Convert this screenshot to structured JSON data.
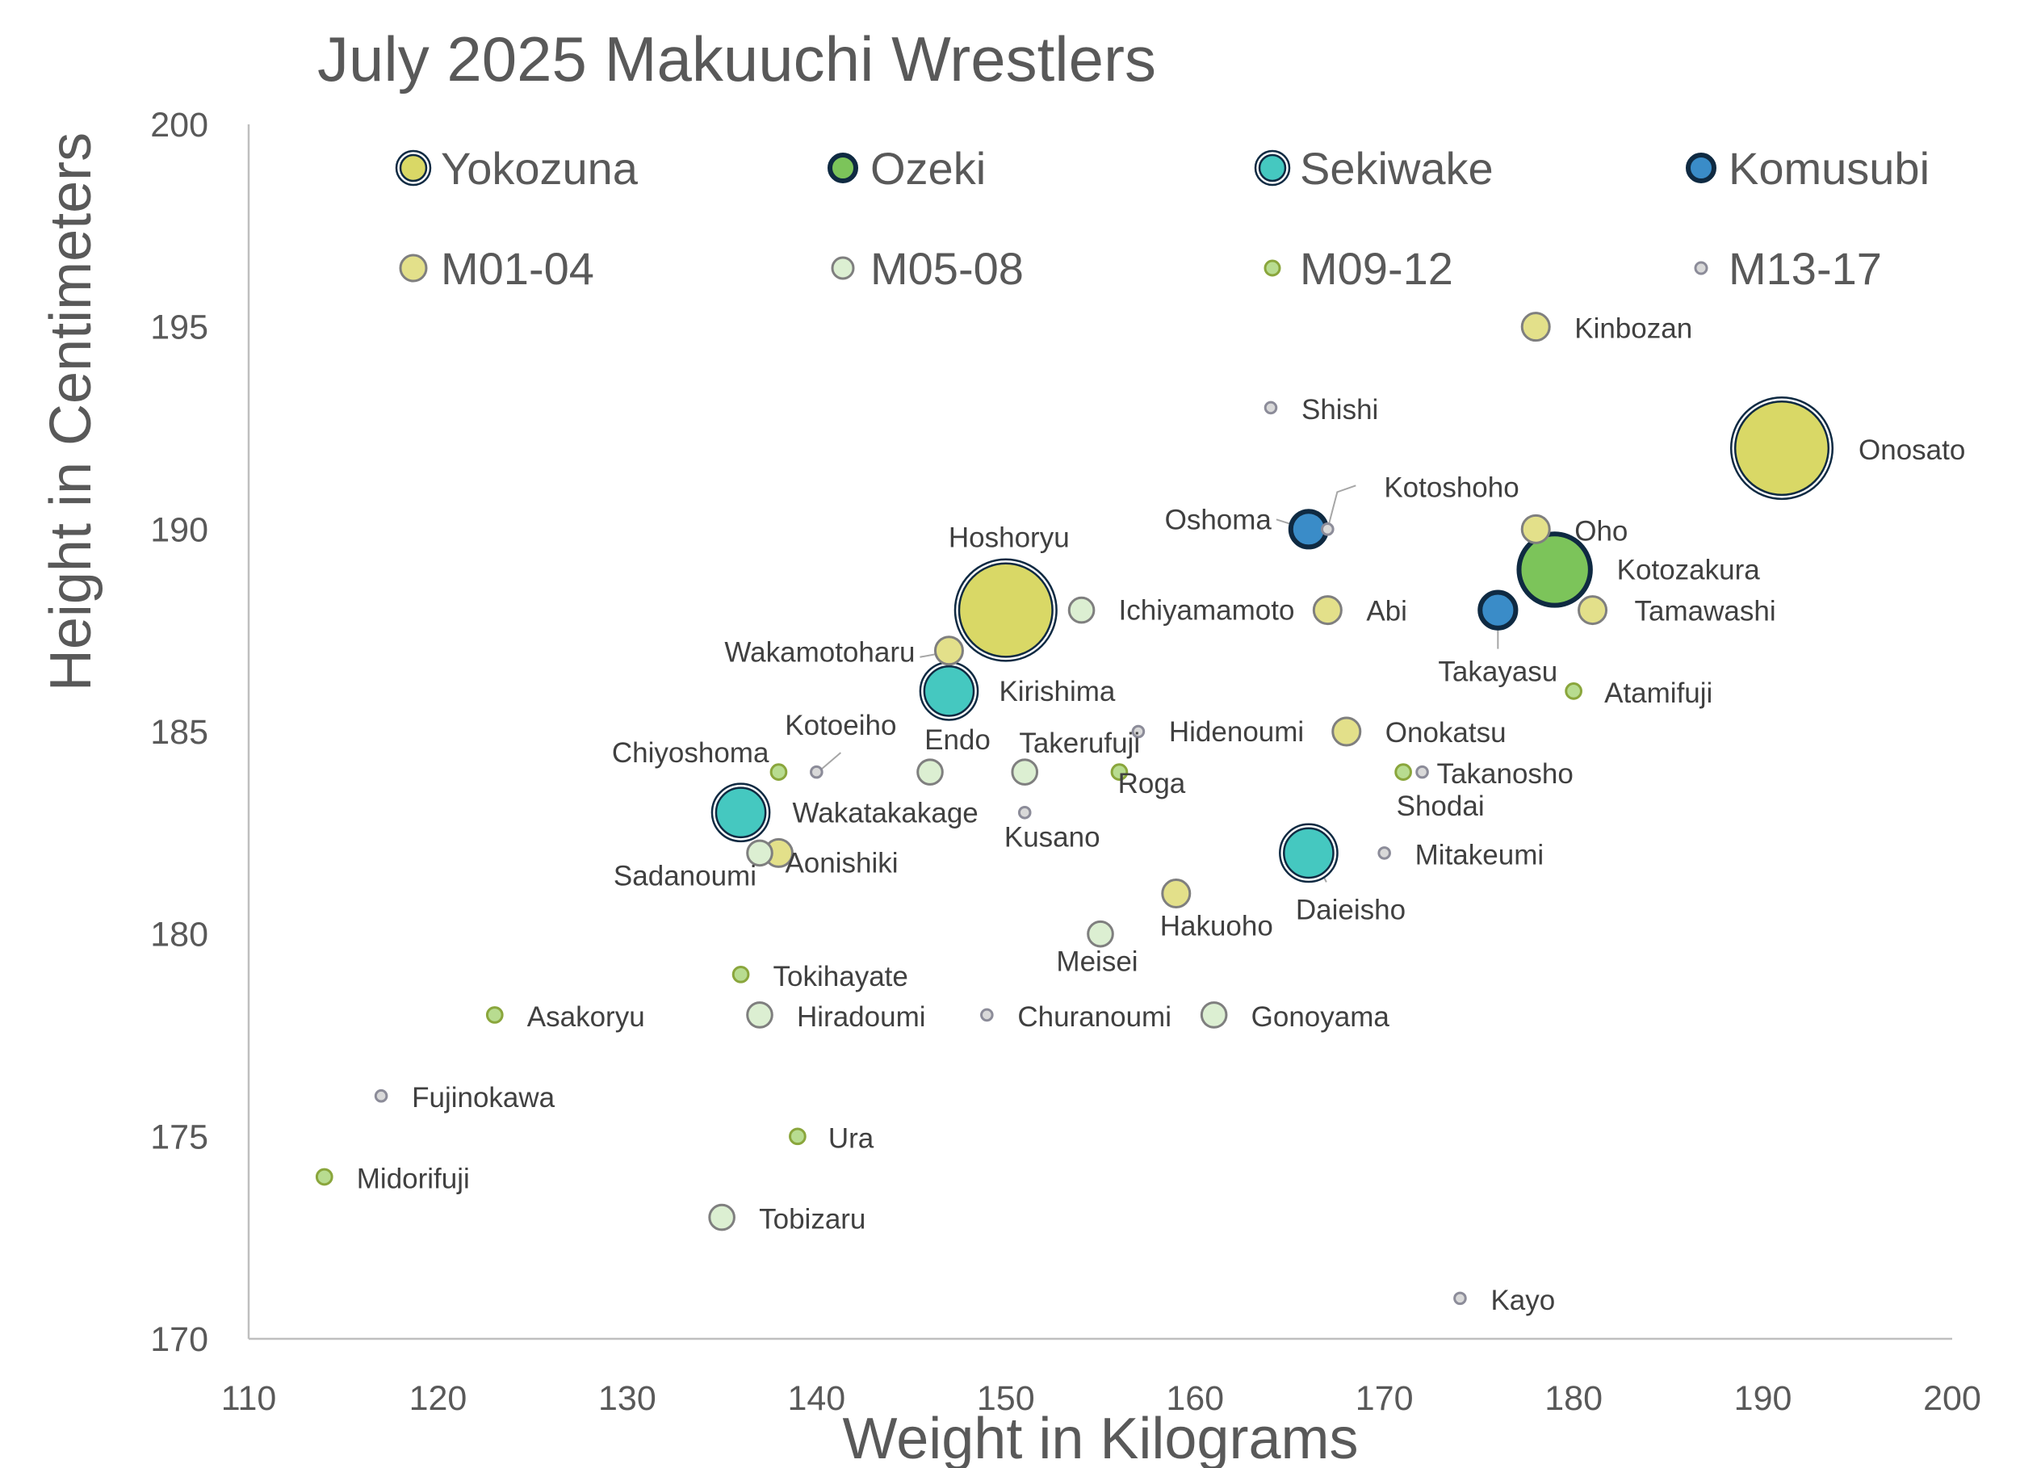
{
  "chart_data": {
    "type": "scatter",
    "title": "July 2025 Makuuchi Wrestlers",
    "xlabel": "Weight in Kilograms",
    "ylabel": "Height in Centimeters",
    "xlim": [
      110,
      200
    ],
    "ylim": [
      170,
      200
    ],
    "xticks": [
      "110",
      "120",
      "130",
      "140",
      "150",
      "160",
      "170",
      "180",
      "190",
      "200"
    ],
    "yticks": [
      "170",
      "175",
      "180",
      "185",
      "190",
      "195",
      "200"
    ],
    "grid": false,
    "legend_position": "top",
    "categories": [
      {
        "key": "yokozuna",
        "name": "Yokozuna",
        "fill": "#D9D866",
        "stroke": "#0F2A42",
        "double": true
      },
      {
        "key": "ozeki",
        "name": "Ozeki",
        "fill": "#7CC45A",
        "stroke": "#0F2A42",
        "double": false
      },
      {
        "key": "sekiwake",
        "name": "Sekiwake",
        "fill": "#45C8C0",
        "stroke": "#0F2A42",
        "double": true
      },
      {
        "key": "komusubi",
        "name": "Komusubi",
        "fill": "#3A8CC8",
        "stroke": "#0F2A42",
        "double": false
      },
      {
        "key": "m01",
        "name": "M01-04",
        "fill": "#E3E08A",
        "stroke": "#7F7F7F",
        "double": false
      },
      {
        "key": "m05",
        "name": "M05-08",
        "fill": "#DCEFD2",
        "stroke": "#7F7F7F",
        "double": false
      },
      {
        "key": "m09",
        "name": "M09-12",
        "fill": "#B8DC90",
        "stroke": "#8AA63C",
        "double": false
      },
      {
        "key": "m13",
        "name": "M13-17",
        "fill": "#D9D9D9",
        "stroke": "#8C8C99",
        "double": false
      }
    ],
    "points": [
      {
        "name": "Onosato",
        "cat": "yokozuna",
        "x": 191,
        "y": 192,
        "size": 3.4
      },
      {
        "name": "Hoshoryu",
        "cat": "yokozuna",
        "x": 150,
        "y": 188,
        "size": 3.4
      },
      {
        "name": "Kotozakura",
        "cat": "ozeki",
        "x": 179,
        "y": 189,
        "size": 2.6
      },
      {
        "name": "Kirishima",
        "cat": "sekiwake",
        "x": 147,
        "y": 186,
        "size": 1.8
      },
      {
        "name": "Wakatakakage",
        "cat": "sekiwake",
        "x": 136,
        "y": 183,
        "size": 1.8
      },
      {
        "name": "Daieisho",
        "cat": "sekiwake",
        "x": 166,
        "y": 182,
        "size": 1.8
      },
      {
        "name": "Oshoma",
        "cat": "komusubi",
        "x": 166,
        "y": 190,
        "size": 1.3
      },
      {
        "name": "Takayasu",
        "cat": "komusubi",
        "x": 176,
        "y": 188,
        "size": 1.3
      },
      {
        "name": "Kinbozan",
        "cat": "m01",
        "x": 178,
        "y": 195,
        "size": 1
      },
      {
        "name": "Oho",
        "cat": "m01",
        "x": 178,
        "y": 190,
        "size": 1
      },
      {
        "name": "Abi",
        "cat": "m01",
        "x": 167,
        "y": 188,
        "size": 1
      },
      {
        "name": "Tamawashi",
        "cat": "m01",
        "x": 181,
        "y": 188,
        "size": 1
      },
      {
        "name": "Wakamotoharu",
        "cat": "m01",
        "x": 147,
        "y": 187,
        "size": 1
      },
      {
        "name": "Onokatsu",
        "cat": "m01",
        "x": 168,
        "y": 185,
        "size": 1
      },
      {
        "name": "Aonishiki",
        "cat": "m01",
        "x": 138,
        "y": 182,
        "size": 1
      },
      {
        "name": "Hakuoho",
        "cat": "m01",
        "x": 159,
        "y": 181,
        "size": 1
      },
      {
        "name": "Ichiyamamoto",
        "cat": "m05",
        "x": 154,
        "y": 188,
        "size": 0.9
      },
      {
        "name": "Endo",
        "cat": "m05",
        "x": 146,
        "y": 184,
        "size": 0.9
      },
      {
        "name": "Takerufuji",
        "cat": "m05",
        "x": 151,
        "y": 184,
        "size": 0.9
      },
      {
        "name": "Sadanoumi",
        "cat": "m05",
        "x": 137,
        "y": 182,
        "size": 0.9
      },
      {
        "name": "Meisei",
        "cat": "m05",
        "x": 155,
        "y": 180,
        "size": 0.9
      },
      {
        "name": "Hiradoumi",
        "cat": "m05",
        "x": 137,
        "y": 178,
        "size": 0.9
      },
      {
        "name": "Gonoyama",
        "cat": "m05",
        "x": 161,
        "y": 178,
        "size": 0.9
      },
      {
        "name": "Tobizaru",
        "cat": "m05",
        "x": 135,
        "y": 173,
        "size": 0.9
      },
      {
        "name": "Atamifuji",
        "cat": "m09",
        "x": 180,
        "y": 186,
        "size": 0.55
      },
      {
        "name": "Chiyoshoma",
        "cat": "m09",
        "x": 138,
        "y": 184,
        "size": 0.55
      },
      {
        "name": "Roga",
        "cat": "m09",
        "x": 156,
        "y": 184,
        "size": 0.55
      },
      {
        "name": "Shodai",
        "cat": "m09",
        "x": 171,
        "y": 184,
        "size": 0.55
      },
      {
        "name": "Tokihayate",
        "cat": "m09",
        "x": 136,
        "y": 179,
        "size": 0.55
      },
      {
        "name": "Asakoryu",
        "cat": "m09",
        "x": 123,
        "y": 178,
        "size": 0.55
      },
      {
        "name": "Ura",
        "cat": "m09",
        "x": 139,
        "y": 175,
        "size": 0.55
      },
      {
        "name": "Midorifuji",
        "cat": "m09",
        "x": 114,
        "y": 174,
        "size": 0.55
      },
      {
        "name": "Shishi",
        "cat": "m13",
        "x": 164,
        "y": 193,
        "size": 0.4
      },
      {
        "name": "Kotoshoho",
        "cat": "m13",
        "x": 167,
        "y": 190,
        "size": 0.4
      },
      {
        "name": "Hidenoumi",
        "cat": "m13",
        "x": 157,
        "y": 185,
        "size": 0.4
      },
      {
        "name": "Kotoeiho",
        "cat": "m13",
        "x": 140,
        "y": 184,
        "size": 0.4
      },
      {
        "name": "Takanosho",
        "cat": "m13",
        "x": 172,
        "y": 184,
        "size": 0.4
      },
      {
        "name": "Kusano",
        "cat": "m13",
        "x": 151,
        "y": 183,
        "size": 0.4
      },
      {
        "name": "Mitakeumi",
        "cat": "m13",
        "x": 170,
        "y": 182,
        "size": 0.4
      },
      {
        "name": "Churanoumi",
        "cat": "m13",
        "x": 149,
        "y": 178,
        "size": 0.4
      },
      {
        "name": "Fujinokawa",
        "cat": "m13",
        "x": 117,
        "y": 176,
        "size": 0.4
      },
      {
        "name": "Kayo",
        "cat": "m13",
        "x": 174,
        "y": 171,
        "size": 0.4
      }
    ]
  }
}
